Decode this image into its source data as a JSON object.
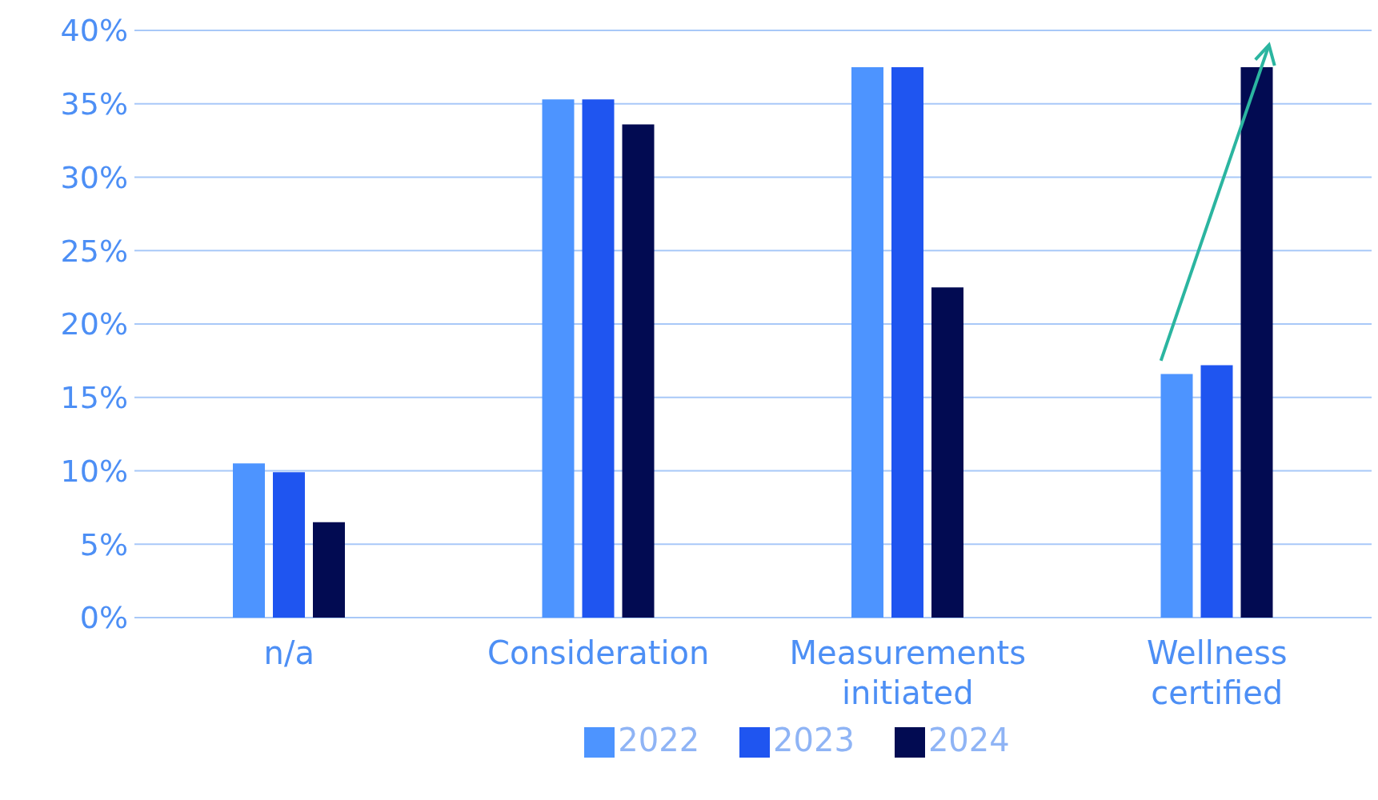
{
  "chart_data": {
    "type": "bar",
    "categories": [
      "n/a",
      "Consideration",
      "Measurements initiated",
      "Wellness certified"
    ],
    "series": [
      {
        "name": "2022",
        "color": "#4d94ff",
        "values": [
          10.5,
          35.3,
          37.5,
          16.6
        ]
      },
      {
        "name": "2023",
        "color": "#1f55f0",
        "values": [
          9.9,
          35.3,
          37.5,
          17.2
        ]
      },
      {
        "name": "2024",
        "color": "#020b52",
        "values": [
          6.5,
          33.6,
          22.5,
          37.5
        ]
      }
    ],
    "ylim": [
      0,
      40
    ],
    "yticks": [
      {
        "value": 0,
        "label": "0%"
      },
      {
        "value": 5,
        "label": "5%"
      },
      {
        "value": 10,
        "label": "10%"
      },
      {
        "value": 15,
        "label": "15%"
      },
      {
        "value": 20,
        "label": "20%"
      },
      {
        "value": 25,
        "label": "25%"
      },
      {
        "value": 30,
        "label": "30%"
      },
      {
        "value": 35,
        "label": "35%"
      },
      {
        "value": 40,
        "label": "40%"
      }
    ],
    "grid": "y",
    "legend": "bottom"
  }
}
